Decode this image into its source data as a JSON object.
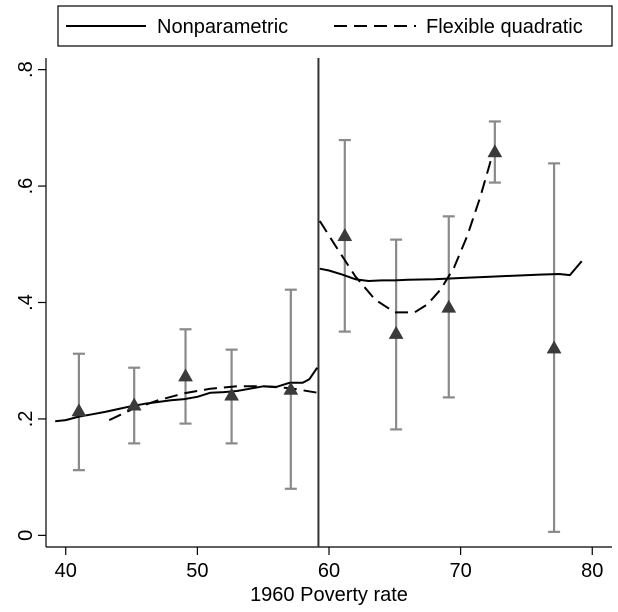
{
  "chart_data": {
    "type": "line",
    "title": "",
    "xlabel": "1960 Poverty rate",
    "ylabel": "",
    "xlim": [
      38.5,
      81.5
    ],
    "ylim": [
      -0.02,
      0.82
    ],
    "xticks": [
      40,
      50,
      60,
      70,
      80
    ],
    "yticks": [
      0,
      0.2,
      0.4,
      0.6,
      0.8
    ],
    "xtick_labels": [
      "40",
      "50",
      "60",
      "70",
      "80"
    ],
    "ytick_labels": [
      "0",
      ".2",
      ".4",
      ".6",
      ".8"
    ],
    "cutoff": 59.1984,
    "grid": false,
    "legend": {
      "position": "top",
      "entries": [
        "Nonparametric",
        "Flexible quadratic"
      ]
    },
    "series": [
      {
        "name": "Nonparametric",
        "style": "solid",
        "segments": [
          [
            [
              39.2,
              0.196
            ],
            [
              40,
              0.198
            ],
            [
              41,
              0.204
            ],
            [
              42,
              0.208
            ],
            [
              43,
              0.212
            ],
            [
              44,
              0.217
            ],
            [
              45,
              0.222
            ],
            [
              46,
              0.226
            ],
            [
              47,
              0.229
            ],
            [
              48,
              0.232
            ],
            [
              49,
              0.234
            ],
            [
              50,
              0.238
            ],
            [
              51,
              0.245
            ],
            [
              52,
              0.246
            ],
            [
              53,
              0.248
            ],
            [
              54,
              0.252
            ],
            [
              55,
              0.256
            ],
            [
              56,
              0.255
            ],
            [
              57,
              0.262
            ],
            [
              58,
              0.262
            ],
            [
              58.5,
              0.268
            ],
            [
              59.1,
              0.288
            ]
          ],
          [
            [
              59.3,
              0.458
            ],
            [
              60,
              0.455
            ],
            [
              61,
              0.448
            ],
            [
              62,
              0.44
            ],
            [
              63,
              0.437
            ],
            [
              64,
              0.438
            ],
            [
              65,
              0.438
            ],
            [
              66,
              0.439
            ],
            [
              68,
              0.44
            ],
            [
              70,
              0.442
            ],
            [
              72,
              0.444
            ],
            [
              74,
              0.446
            ],
            [
              76,
              0.448
            ],
            [
              77.5,
              0.449
            ],
            [
              78.3,
              0.447
            ],
            [
              79.2,
              0.471
            ]
          ]
        ]
      },
      {
        "name": "Flexible quadratic",
        "style": "dashed",
        "segments": [
          [
            [
              43.3,
              0.198
            ],
            [
              45,
              0.216
            ],
            [
              47,
              0.232
            ],
            [
              49,
              0.244
            ],
            [
              51,
              0.252
            ],
            [
              53,
              0.256
            ],
            [
              55,
              0.256
            ],
            [
              57,
              0.253
            ],
            [
              59.1,
              0.245
            ]
          ],
          [
            [
              59.3,
              0.54
            ],
            [
              60.5,
              0.497
            ],
            [
              62,
              0.445
            ],
            [
              63.5,
              0.405
            ],
            [
              65,
              0.383
            ],
            [
              66.5,
              0.383
            ],
            [
              67.5,
              0.397
            ],
            [
              68.5,
              0.423
            ],
            [
              69.5,
              0.46
            ],
            [
              70.5,
              0.514
            ],
            [
              71.5,
              0.582
            ],
            [
              72.5,
              0.66
            ]
          ]
        ]
      }
    ],
    "bin_means": [
      {
        "x": 41.0,
        "y": 0.214,
        "low": 0.112,
        "high": 0.312
      },
      {
        "x": 45.2,
        "y": 0.224,
        "low": 0.158,
        "high": 0.288
      },
      {
        "x": 49.1,
        "y": 0.274,
        "low": 0.192,
        "high": 0.354
      },
      {
        "x": 52.6,
        "y": 0.241,
        "low": 0.158,
        "high": 0.319
      },
      {
        "x": 57.1,
        "y": 0.251,
        "low": 0.08,
        "high": 0.422
      },
      {
        "x": 61.2,
        "y": 0.515,
        "low": 0.35,
        "high": 0.679
      },
      {
        "x": 65.1,
        "y": 0.347,
        "low": 0.182,
        "high": 0.508
      },
      {
        "x": 69.1,
        "y": 0.392,
        "low": 0.237,
        "high": 0.548
      },
      {
        "x": 72.6,
        "y": 0.659,
        "low": 0.606,
        "high": 0.711
      },
      {
        "x": 77.1,
        "y": 0.322,
        "low": 0.006,
        "high": 0.639
      }
    ],
    "colors": {
      "lines": "#000000",
      "markers": "#3a3a3a",
      "error_bars": "#8a8a8a",
      "cutoff_line": "#333333"
    }
  }
}
